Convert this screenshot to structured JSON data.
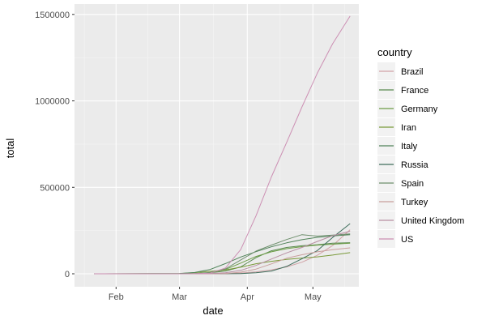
{
  "chart_data": {
    "type": "line",
    "xlabel": "date",
    "ylabel": "total",
    "xlim": [
      "2020-01-13",
      "2020-05-22"
    ],
    "ylim": [
      -75000,
      1560000
    ],
    "x_ticks": [
      {
        "date": "2020-02-01",
        "label": "Feb"
      },
      {
        "date": "2020-03-01",
        "label": "Mar"
      },
      {
        "date": "2020-04-01",
        "label": "Apr"
      },
      {
        "date": "2020-05-01",
        "label": "May"
      }
    ],
    "y_ticks": [
      {
        "value": 0,
        "label": "0"
      },
      {
        "value": 500000,
        "label": "500000"
      },
      {
        "value": 1000000,
        "label": "1000000"
      },
      {
        "value": 1500000,
        "label": "1500000"
      }
    ],
    "grid": true,
    "legend": {
      "title": "country",
      "position": "right"
    },
    "x": [
      "2020-01-22",
      "2020-03-01",
      "2020-03-08",
      "2020-03-15",
      "2020-03-22",
      "2020-03-29",
      "2020-04-05",
      "2020-04-12",
      "2020-04-19",
      "2020-04-26",
      "2020-05-03",
      "2020-05-10",
      "2020-05-18"
    ],
    "series": [
      {
        "name": "Brazil",
        "color": "#d1a3a7",
        "values": [
          0,
          0,
          0,
          0,
          1000,
          4000,
          11000,
          23000,
          40000,
          67000,
          107000,
          163000,
          255000
        ]
      },
      {
        "name": "France",
        "color": "#5a8a4f",
        "values": [
          0,
          100,
          1100,
          5400,
          16000,
          40000,
          93000,
          133000,
          152000,
          162000,
          168000,
          177000,
          180000
        ]
      },
      {
        "name": "Germany",
        "color": "#6c9d46",
        "values": [
          0,
          130,
          1000,
          6000,
          25000,
          62000,
          100000,
          127000,
          145000,
          157000,
          166000,
          171000,
          177000
        ]
      },
      {
        "name": "Iran",
        "color": "#7a9a3a",
        "values": [
          0,
          980,
          6500,
          14000,
          22000,
          38000,
          58000,
          72000,
          83000,
          91000,
          98000,
          108000,
          122000
        ]
      },
      {
        "name": "Italy",
        "color": "#4f8258",
        "values": [
          0,
          1700,
          7400,
          24700,
          59000,
          97000,
          128000,
          156000,
          179000,
          197000,
          211000,
          219000,
          226000
        ]
      },
      {
        "name": "Russia",
        "color": "#3f6e5c",
        "values": [
          0,
          0,
          0,
          60,
          400,
          1500,
          5400,
          15800,
          42800,
          87000,
          134000,
          210000,
          290000
        ]
      },
      {
        "name": "Spain",
        "color": "#6e8f6d",
        "values": [
          0,
          80,
          670,
          7800,
          28000,
          80000,
          131000,
          166000,
          198000,
          226000,
          218000,
          224000,
          231000
        ]
      },
      {
        "name": "Turkey",
        "color": "#c99f9d",
        "values": [
          0,
          0,
          0,
          6,
          1200,
          9200,
          27000,
          57000,
          90000,
          110000,
          127000,
          139000,
          150000
        ]
      },
      {
        "name": "United Kingdom",
        "color": "#b88fa3",
        "values": [
          0,
          30,
          270,
          1400,
          5700,
          19500,
          48000,
          85000,
          121000,
          152000,
          187000,
          220000,
          246000
        ]
      },
      {
        "name": "US",
        "color": "#cc8fb3",
        "values": [
          0,
          30,
          500,
          3500,
          33000,
          140000,
          336000,
          560000,
          760000,
          965000,
          1160000,
          1330000,
          1490000
        ]
      }
    ]
  }
}
